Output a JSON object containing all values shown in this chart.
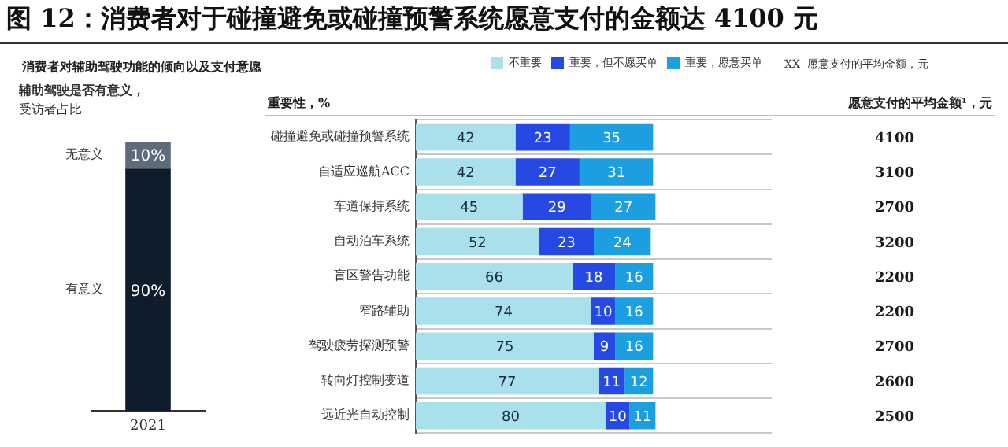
{
  "chart_data": [
    {
      "type": "bar",
      "stacked": true,
      "title": "图 12：消费者对于碰撞避免或碰撞预警系统愿意支付的金额达 4100 元",
      "subtitle": "消费者对辅助驾驶功能的倾向以及支付意愿",
      "annotations": [
        "辅助驾驶是否有意义，",
        "受访者占比"
      ],
      "categories": [
        "2021"
      ],
      "legend": false,
      "series": [
        {
          "name": "有意义",
          "color": "#0e1c2b",
          "values": [
            90
          ],
          "value_labels": [
            "90%"
          ]
        },
        {
          "name": "无意义",
          "color": "#5d6b7a",
          "values": [
            10
          ],
          "value_labels": [
            "10%"
          ]
        }
      ]
    },
    {
      "type": "bar",
      "stacked": true,
      "orientation": "horizontal",
      "title": "重要性，%",
      "data_labels": true,
      "legend": "top right",
      "grid": "y",
      "categories": [
        "碰撞避免或碰撞预警系统",
        "自适应巡航ACC",
        "车道保持系统",
        "自动泊车系统",
        "盲区警告功能",
        "窄路辅助",
        "驾驶疲劳探测预警",
        "转向灯控制变道",
        "远近光自动控制"
      ],
      "series": [
        {
          "name": "不重要",
          "color": "#a9e0ec",
          "values": [
            42,
            42,
            45,
            52,
            66,
            74,
            75,
            77,
            80
          ]
        },
        {
          "name": "重要，但不愿买单",
          "color": "#2749e3",
          "values": [
            23,
            27,
            29,
            23,
            18,
            10,
            9,
            11,
            10
          ]
        },
        {
          "name": "重要，愿意买单",
          "color": "#1b9fe0",
          "values": [
            35,
            31,
            27,
            24,
            16,
            16,
            16,
            12,
            11
          ]
        }
      ],
      "annotations": [
        "XX  愿意支付的平均金额，元",
        "愿意支付的平均金额¹，元",
        "4100",
        "3100",
        "2700",
        "3200",
        "2200",
        "2200",
        "2700",
        "2600",
        "2500"
      ]
    }
  ]
}
